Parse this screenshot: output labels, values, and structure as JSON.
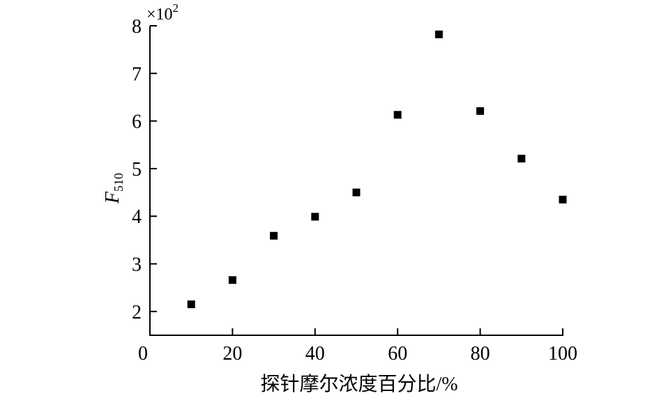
{
  "chart_data": {
    "type": "scatter",
    "x_label": "探针摩尔浓度百分比/%",
    "y_label": "F",
    "y_label_subscript": "510",
    "y_multiplier": "×10",
    "y_multiplier_exponent": "2",
    "x": [
      10,
      20,
      30,
      40,
      50,
      60,
      70,
      80,
      90,
      100
    ],
    "values": [
      2.15,
      2.66,
      3.59,
      3.99,
      4.5,
      6.13,
      7.82,
      6.21,
      5.21,
      4.35
    ],
    "color": "#000000",
    "xlim": [
      0,
      100
    ],
    "xticks": [
      0,
      20,
      40,
      60,
      80,
      100
    ],
    "ylim": [
      1.5,
      8
    ],
    "yticks": [
      2,
      3,
      4,
      5,
      6,
      7,
      8
    ]
  }
}
